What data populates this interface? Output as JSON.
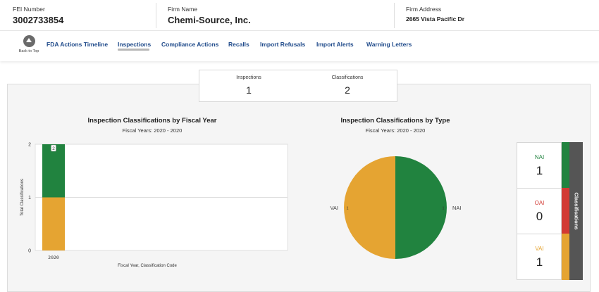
{
  "header": {
    "fei_label": "FEI Number",
    "fei_value": "3002733854",
    "firm_name_label": "Firm Name",
    "firm_name_value": "Chemi-Source, Inc.",
    "firm_address_label": "Firm Address",
    "firm_address_value": "2665 Vista Pacific Dr"
  },
  "nav": {
    "back_to_top": "Back to Top",
    "links": [
      "FDA Actions Timeline",
      "Inspections",
      "Compliance Actions",
      "Recalls",
      "Import Refusals",
      "Import Alerts",
      "Warning Letters"
    ],
    "active": "Inspections"
  },
  "summary": {
    "inspections_label": "Inspections",
    "inspections_value": "1",
    "classifications_label": "Classifications",
    "classifications_value": "2"
  },
  "colors": {
    "nai": "#21833f",
    "oai": "#d23a34",
    "vai": "#e5a432",
    "nav_link": "#1f4a8a",
    "tab_bg": "#555555"
  },
  "chart_data": [
    {
      "type": "bar",
      "title": "Inspection Classifications by Fiscal Year",
      "subtitle": "Fiscal Years: 2020 - 2020",
      "xlabel": "Fiscal Year, Classification Code",
      "ylabel": "Total Classifications",
      "categories": [
        "2020"
      ],
      "stacked": true,
      "series": [
        {
          "name": "VAI",
          "values": [
            1
          ],
          "color": "#e5a432"
        },
        {
          "name": "NAI",
          "values": [
            1
          ],
          "color": "#21833f"
        }
      ],
      "total_labels": [
        "2"
      ],
      "yticks": [
        "0",
        "1",
        "2"
      ],
      "ylim": [
        0,
        2
      ],
      "grid": true
    },
    {
      "type": "pie",
      "title": "Inspection Classifications by Type",
      "subtitle": "Fiscal Years: 2020 - 2020",
      "slices": [
        {
          "label": "NAI",
          "value": 1,
          "color": "#21833f"
        },
        {
          "label": "VAI",
          "value": 1,
          "color": "#e5a432"
        }
      ]
    }
  ],
  "legend_card": {
    "tab_label": "Classifications",
    "items": [
      {
        "code": "NAI",
        "count": "1",
        "color": "#21833f"
      },
      {
        "code": "OAI",
        "count": "0",
        "color": "#d23a34"
      },
      {
        "code": "VAI",
        "count": "1",
        "color": "#e5a432"
      }
    ]
  }
}
